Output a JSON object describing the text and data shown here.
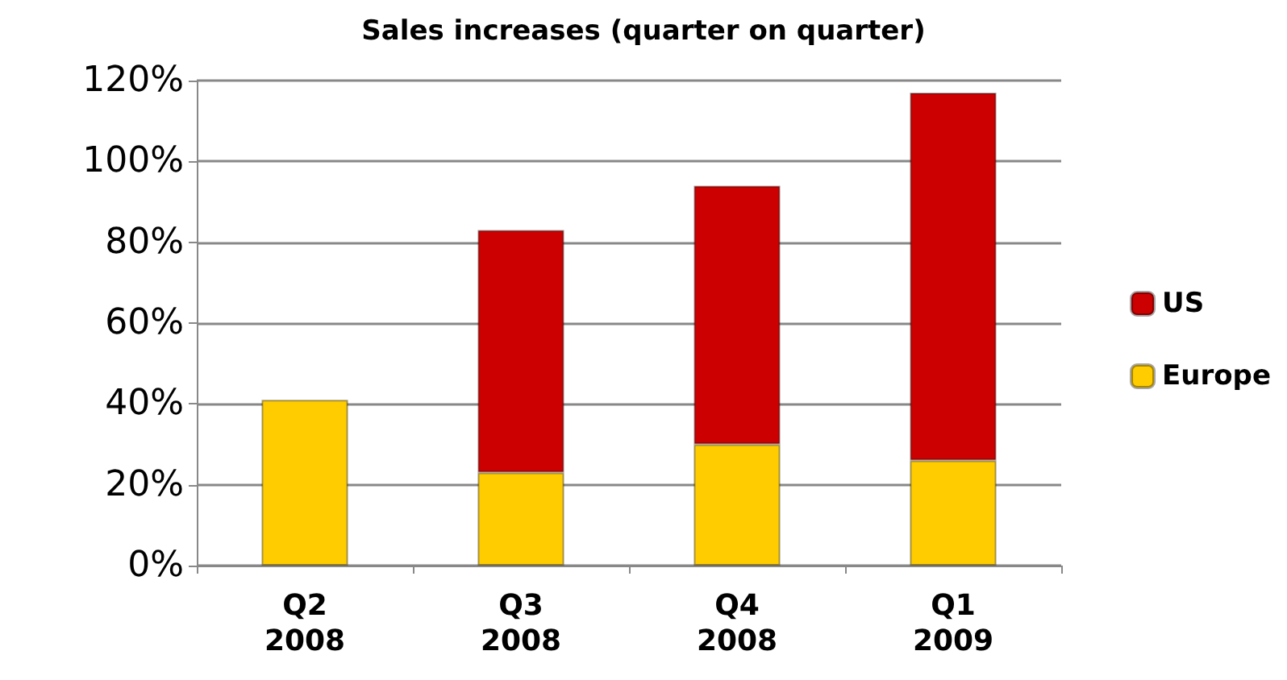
{
  "chart_data": {
    "type": "bar",
    "title": "Sales increases (quarter on quarter)",
    "categories": [
      "Q2\n2008",
      "Q3\n2008",
      "Q4\n2008",
      "Q1\n2009"
    ],
    "stacked": true,
    "series": [
      {
        "name": "Europe",
        "color": "#ffcc00",
        "values": [
          41,
          23,
          30,
          26
        ]
      },
      {
        "name": "US",
        "color": "#cc0000",
        "values": [
          null,
          60,
          64,
          91
        ]
      }
    ],
    "ylim": [
      0,
      120
    ],
    "yticks": [
      {
        "value": 0,
        "label": "0%"
      },
      {
        "value": 20,
        "label": "20%"
      },
      {
        "value": 40,
        "label": "40%"
      },
      {
        "value": 60,
        "label": "60%"
      },
      {
        "value": 80,
        "label": "80%"
      },
      {
        "value": 100,
        "label": "100%"
      },
      {
        "value": 120,
        "label": "120%"
      }
    ],
    "grid": "y",
    "legend": "right"
  }
}
